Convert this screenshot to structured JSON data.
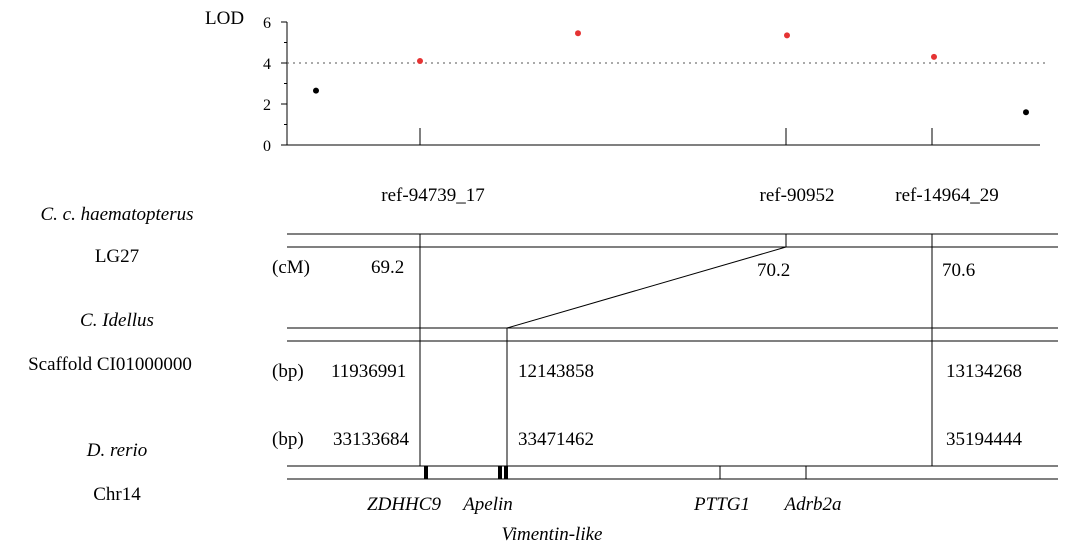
{
  "chart_data": {
    "type": "scatter",
    "ylabel": "LOD",
    "y_ticks": [
      0,
      2,
      4,
      6
    ],
    "ylim": [
      0,
      6
    ],
    "threshold": 4,
    "threshold_style": "dotted",
    "points": [
      {
        "order": 1,
        "y": 2.65,
        "color": "#000000"
      },
      {
        "order": 2,
        "y": 4.1,
        "color": "#e53333"
      },
      {
        "order": 3,
        "y": 5.45,
        "color": "#e53333"
      },
      {
        "order": 4,
        "y": 5.35,
        "color": "#e53333"
      },
      {
        "order": 5,
        "y": 4.3,
        "color": "#e53333"
      },
      {
        "order": 6,
        "y": 1.6,
        "color": "#000000"
      }
    ]
  },
  "markers": [
    "ref-94739_17",
    "ref-90952",
    "ref-14964_29"
  ],
  "species": {
    "haematopterus": {
      "name": "C. c. haematopterus",
      "group": "LG27",
      "unit": "(cM)",
      "values": [
        "69.2",
        "70.2",
        "70.6"
      ]
    },
    "idellus": {
      "name": "C. Idellus",
      "group": "Scaffold CI01000000",
      "unit": "(bp)",
      "values": [
        "11936991",
        "12143858",
        "13134268"
      ]
    },
    "rerio": {
      "name": "D. rerio",
      "group": "Chr14",
      "unit": "(bp)",
      "values": [
        "33133684",
        "33471462",
        "35194444"
      ]
    }
  },
  "genes": [
    "ZDHHC9",
    "Apelin",
    "Vimentin-like",
    "PTTG1",
    "Adrb2a"
  ]
}
